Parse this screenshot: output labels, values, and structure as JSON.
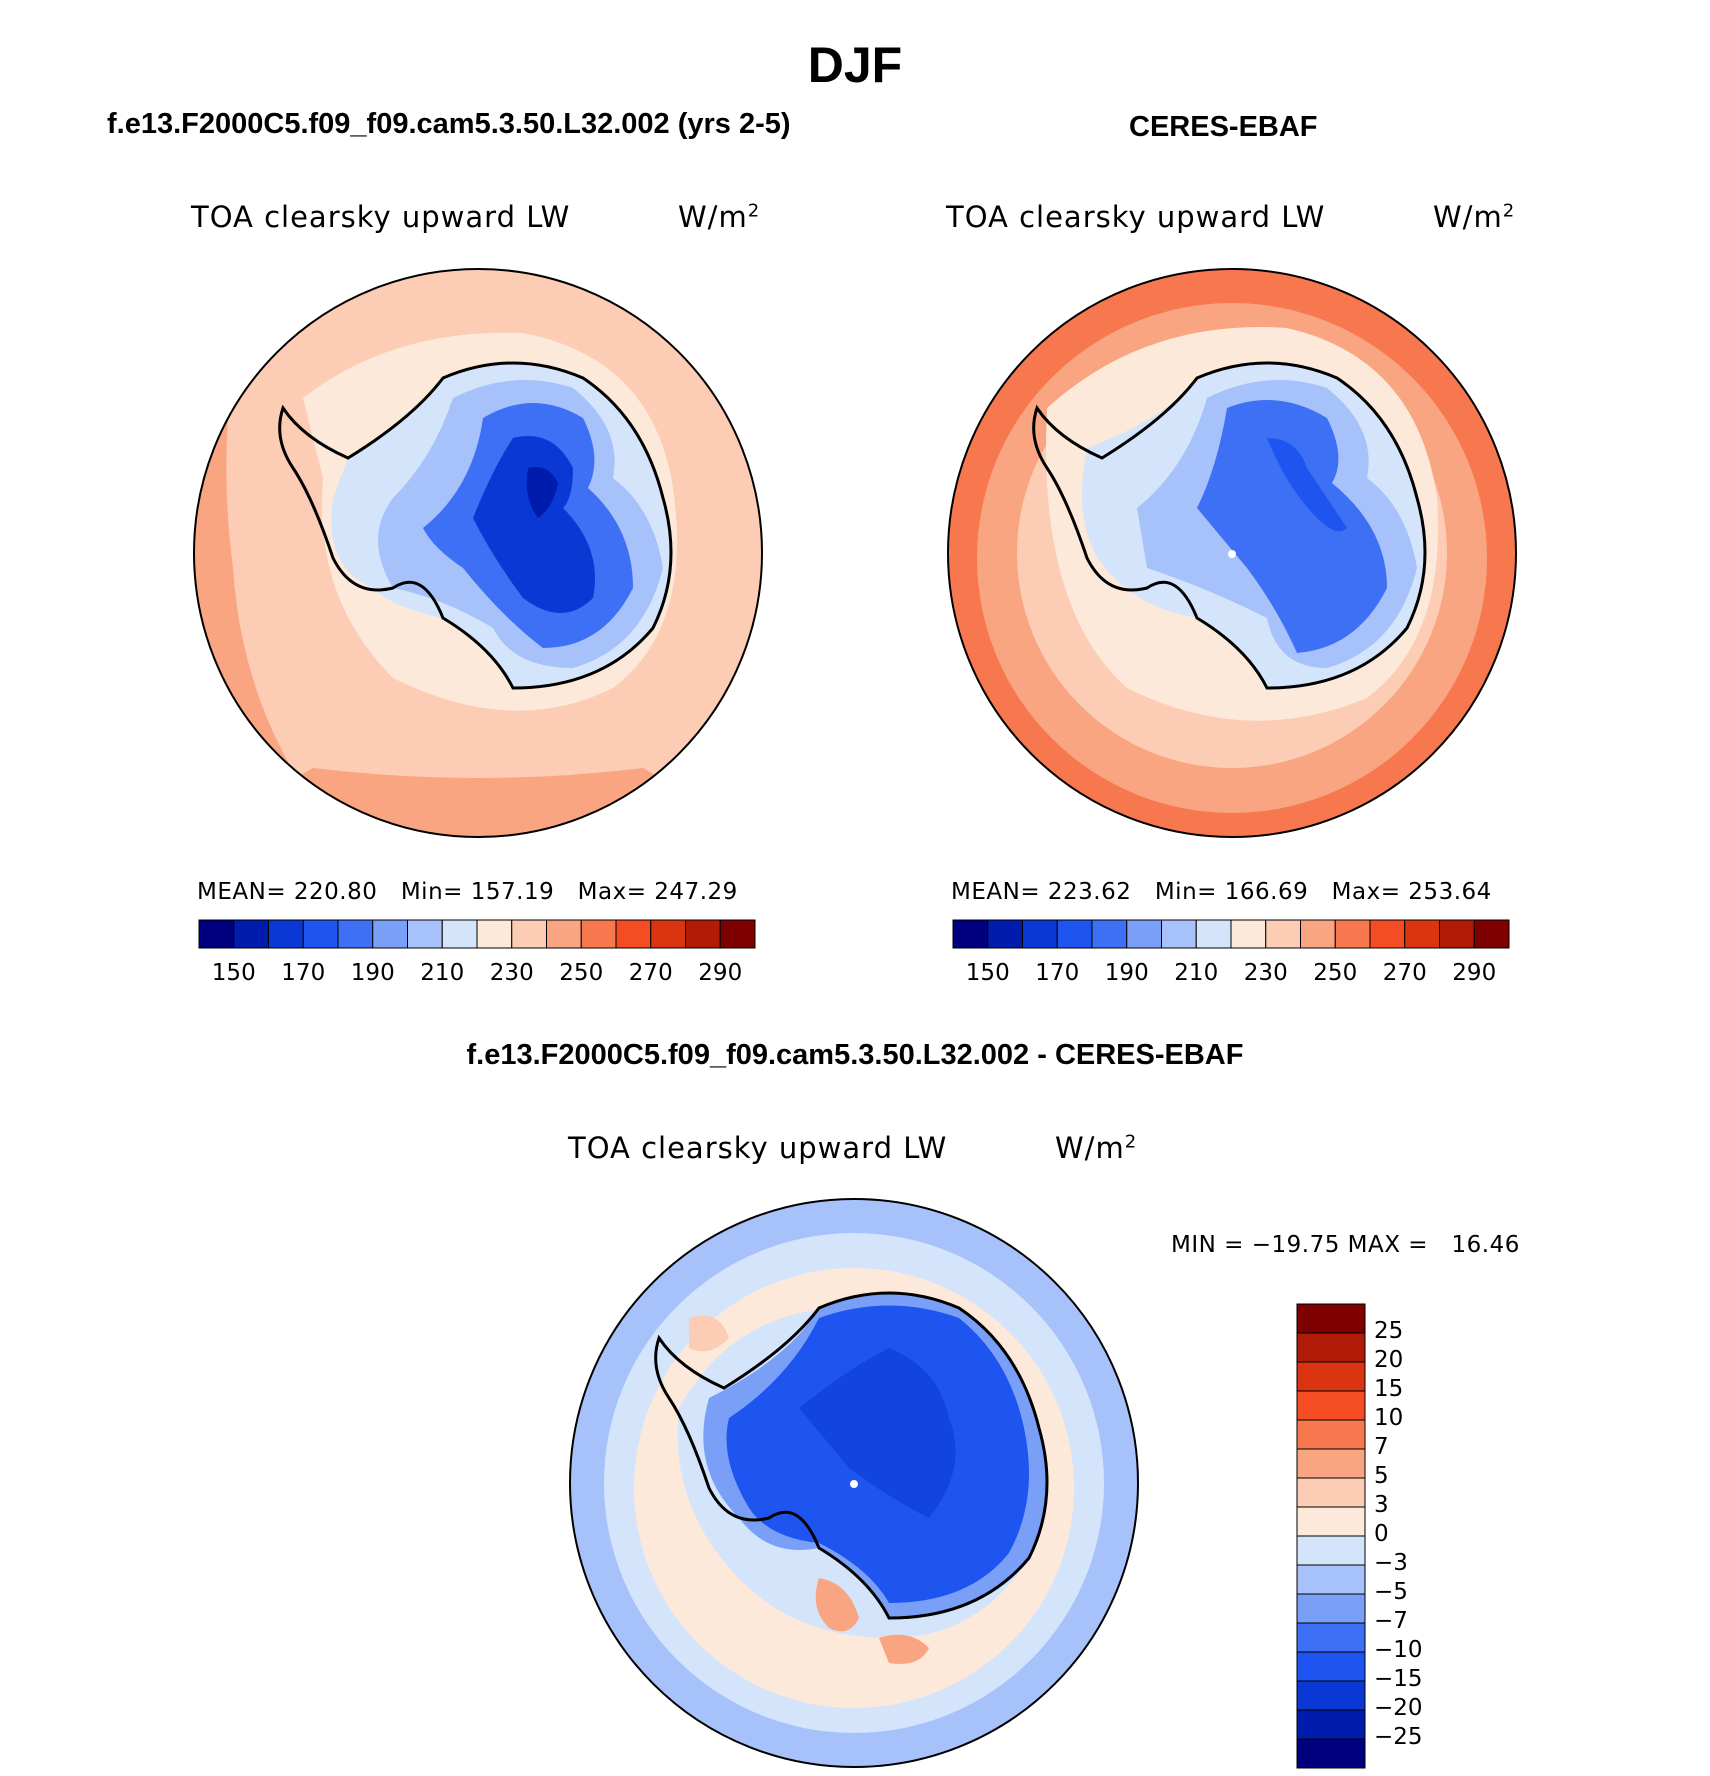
{
  "season": "DJF",
  "panels": {
    "model": {
      "title": "f.e13.F2000C5.f09_f09.cam5.3.50.L32.002 (yrs 2-5)",
      "variable": "TOA clearsky upward LW",
      "units": "W/m",
      "units_sup": "2",
      "stats": {
        "mean_label": "MEAN=",
        "mean": "220.80",
        "min_label": "Min=",
        "min": "157.19",
        "max_label": "Max=",
        "max": "247.29"
      }
    },
    "obs": {
      "title": "CERES-EBAF",
      "variable": "TOA clearsky upward LW",
      "units": "W/m",
      "units_sup": "2",
      "stats": {
        "mean_label": "MEAN=",
        "mean": "223.62",
        "min_label": "Min=",
        "min": "166.69",
        "max_label": "Max=",
        "max": "253.64"
      }
    },
    "diff": {
      "title": "f.e13.F2000C5.f09_f09.cam5.3.50.L32.002 - CERES-EBAF",
      "variable": "TOA clearsky upward LW",
      "units": "W/m",
      "units_sup": "2",
      "minmax": "MIN = −19.75 MAX =   16.46"
    }
  },
  "colorbar_main": {
    "colors": [
      "#00007f",
      "#001cac",
      "#0a38d4",
      "#1e55f0",
      "#3d70f5",
      "#7a9ff7",
      "#a7c1fa",
      "#d4e5fb",
      "#fce9d9",
      "#fcccb4",
      "#f9a582",
      "#f7774f",
      "#f44d24",
      "#db3410",
      "#b01c08",
      "#7f0000"
    ],
    "tick_labels": [
      "150",
      "170",
      "190",
      "210",
      "230",
      "250",
      "270",
      "290"
    ]
  },
  "colorbar_diff": {
    "colors_top_to_bottom": [
      "#7f0000",
      "#b01c08",
      "#db3410",
      "#f44d24",
      "#f7774f",
      "#f9a582",
      "#fcccb4",
      "#fce9d9",
      "#d4e5fb",
      "#a7c1fa",
      "#7a9ff7",
      "#3d70f5",
      "#1e55f0",
      "#0a38d4",
      "#001cac",
      "#00007f"
    ],
    "tick_labels_top_to_bottom": [
      "25",
      "20",
      "15",
      "10",
      "7",
      "5",
      "3",
      "0",
      "−3",
      "−5",
      "−7",
      "−10",
      "−15",
      "−20",
      "−25"
    ]
  }
}
